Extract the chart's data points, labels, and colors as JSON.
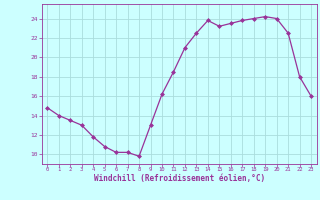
{
  "x": [
    0,
    1,
    2,
    3,
    4,
    5,
    6,
    7,
    8,
    9,
    10,
    11,
    12,
    13,
    14,
    15,
    16,
    17,
    18,
    19,
    20,
    21,
    22,
    23
  ],
  "y": [
    14.8,
    14.0,
    13.5,
    13.0,
    11.8,
    10.8,
    10.2,
    10.2,
    9.8,
    13.0,
    16.2,
    18.5,
    21.0,
    22.5,
    23.8,
    23.2,
    23.5,
    23.8,
    24.0,
    24.2,
    24.0,
    22.5,
    18.0,
    16.0
  ],
  "line_color": "#993399",
  "marker_color": "#993399",
  "bg_color": "#ccffff",
  "grid_color": "#aadddd",
  "axis_color": "#993399",
  "tick_color": "#993399",
  "xlabel": "Windchill (Refroidissement éolien,°C)",
  "ylim": [
    9,
    25.5
  ],
  "xlim": [
    -0.5,
    23.5
  ],
  "yticks": [
    10,
    12,
    14,
    16,
    18,
    20,
    22,
    24
  ],
  "xticks": [
    0,
    1,
    2,
    3,
    4,
    5,
    6,
    7,
    8,
    9,
    10,
    11,
    12,
    13,
    14,
    15,
    16,
    17,
    18,
    19,
    20,
    21,
    22,
    23
  ]
}
